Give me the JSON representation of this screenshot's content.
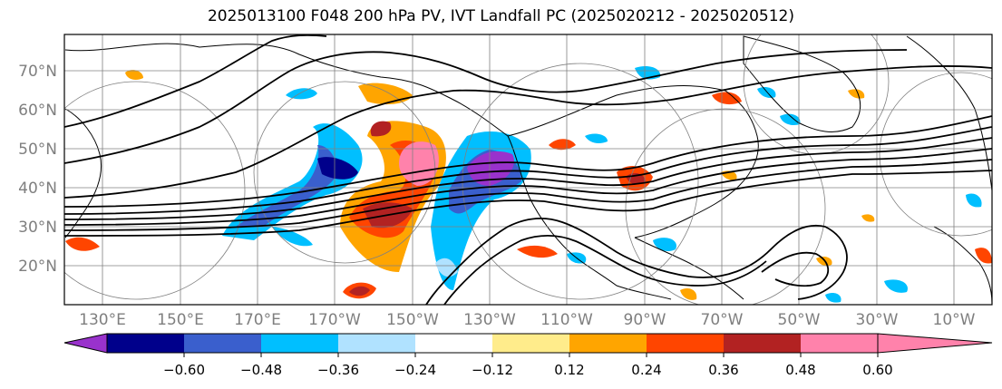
{
  "title": "2025013100 F048 200 hPa PV, IVT Landfall PC (2025020212 - 2025020512)",
  "lat_labels": [
    "70°N",
    "60°N",
    "50°N",
    "40°N",
    "30°N",
    "20°N"
  ],
  "lon_labels": [
    "130°E",
    "150°E",
    "170°E",
    "170°W",
    "150°W",
    "130°W",
    "110°W",
    "90°W",
    "70°W",
    "50°W",
    "30°W",
    "10°W"
  ],
  "colorbar": {
    "labels": [
      "−0.60",
      "−0.48",
      "−0.36",
      "−0.24",
      "−0.12",
      "0.12",
      "0.24",
      "0.36",
      "0.48",
      "0.60"
    ],
    "colors": [
      "#9932cc",
      "#00008b",
      "#3a5fcd",
      "#00bfff",
      "#b0e2ff",
      "#ffffff",
      "#ffec8b",
      "#ffa500",
      "#ff4500",
      "#b22222",
      "#ff82ab",
      "#ff82ab"
    ]
  },
  "shading_colors": {
    "neg_strong": "#9932cc",
    "neg_dark": "#00008b",
    "neg_mid": "#3a5fcd",
    "neg_light": "#00bfff",
    "neg_pale": "#b0e2ff",
    "pos_pale": "#ffec8b",
    "pos_light": "#ffa500",
    "pos_mid": "#ff4500",
    "pos_dark": "#b22222",
    "pos_strong": "#ff82ab"
  }
}
